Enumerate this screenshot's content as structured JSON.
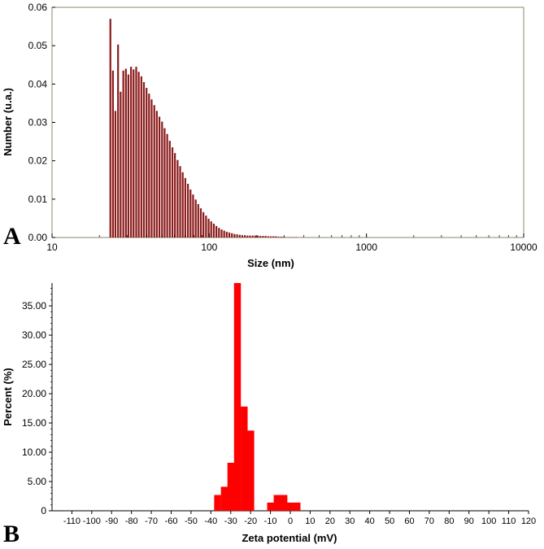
{
  "panels": [
    {
      "letter": "A"
    },
    {
      "letter": "B"
    }
  ],
  "chart_data": [
    {
      "type": "bar",
      "panel": "A",
      "xlabel": "Size (nm)",
      "ylabel": "Number (u.a.)",
      "xscale": "log",
      "xlim": [
        10,
        10000
      ],
      "ylim": [
        0,
        0.06
      ],
      "xticks": [
        10,
        100,
        1000,
        10000
      ],
      "xtick_labels": [
        "10",
        "100",
        "1000",
        "10000"
      ],
      "yticks": [
        0,
        0.01,
        0.02,
        0.03,
        0.04,
        0.05,
        0.06
      ],
      "ytick_labels": [
        "0.00",
        "0.01",
        "0.02",
        "0.03",
        "0.04",
        "0.05",
        "0.06"
      ],
      "bar_color": "#8b1a1a",
      "x": [
        23.5,
        24.4,
        25.3,
        26.3,
        27.3,
        28.4,
        29.5,
        30.6,
        31.8,
        33.0,
        34.3,
        35.6,
        37.0,
        38.4,
        39.9,
        41.4,
        43.0,
        44.7,
        46.4,
        48.2,
        50.1,
        52.0,
        54.0,
        56.1,
        58.3,
        60.5,
        62.9,
        65.3,
        67.8,
        70.4,
        73.2,
        76.0,
        78.9,
        82.0,
        85.1,
        88.4,
        91.8,
        95.4,
        99.1,
        102.9,
        106.9,
        111.0,
        115.3,
        119.8,
        124.4,
        129.2,
        134.2,
        139.4,
        144.8,
        150.4,
        156.2,
        162.2,
        168.5,
        175.0,
        181.7,
        188.8,
        196.1,
        203.6,
        211.5,
        219.7,
        228.2,
        237.0,
        246.1,
        255.6,
        265.5,
        275.8,
        286.4,
        297.5,
        309.0,
        321.0,
        333.4,
        346.2,
        359.6
      ],
      "values": [
        0.057,
        0.0435,
        0.033,
        0.0503,
        0.038,
        0.0435,
        0.044,
        0.0425,
        0.0445,
        0.0438,
        0.0445,
        0.0432,
        0.042,
        0.0405,
        0.039,
        0.0375,
        0.036,
        0.0345,
        0.033,
        0.0315,
        0.0302,
        0.0285,
        0.027,
        0.0252,
        0.0235,
        0.022,
        0.0202,
        0.0186,
        0.017,
        0.0155,
        0.014,
        0.0125,
        0.0112,
        0.0099,
        0.0087,
        0.0076,
        0.0066,
        0.0057,
        0.0049,
        0.0042,
        0.0036,
        0.003,
        0.0025,
        0.0021,
        0.0018,
        0.0015,
        0.0013,
        0.0011,
        0.0009,
        0.0008,
        0.0007,
        0.0006,
        0.0006,
        0.0005,
        0.0005,
        0.0005,
        0.0005,
        0.0005,
        0.0004,
        0.0004,
        0.0004,
        0.0003,
        0.0003,
        0.0003,
        0.0003,
        0.0002,
        0.0002,
        0.0002,
        0.0001,
        0.0001,
        0.0001,
        0.0001,
        0.0001
      ]
    },
    {
      "type": "bar",
      "panel": "B",
      "xlabel": "Zeta potential (mV)",
      "ylabel": "Percent (%)",
      "xlim": [
        -120,
        120
      ],
      "ylim": [
        0,
        38.9
      ],
      "xticks": [
        -110,
        -100,
        -90,
        -80,
        -70,
        -60,
        -50,
        -40,
        -30,
        -20,
        -10,
        0,
        10,
        20,
        30,
        40,
        50,
        60,
        70,
        80,
        90,
        100,
        110,
        120
      ],
      "xtick_labels": [
        "-110",
        "-100",
        "-90",
        "-80",
        "-70",
        "-60",
        "-50",
        "-40",
        "-30",
        "-20",
        "-10",
        "0",
        "10",
        "20",
        "30",
        "40",
        "50",
        "60",
        "70",
        "80",
        "90",
        "100",
        "110",
        "120"
      ],
      "yticks": [
        0,
        5,
        10,
        15,
        20,
        25,
        30,
        35
      ],
      "ytick_labels": [
        "0",
        "5.00",
        "10.00",
        "15.00",
        "20.00",
        "25.00",
        "30.00",
        "35.00"
      ],
      "bar_color": "#ff0000",
      "bar_width": 3.3,
      "x": [
        -36.7,
        -33.3,
        -30.0,
        -26.7,
        -23.3,
        -20.0,
        -10.0,
        -6.7,
        -3.3,
        0.0,
        3.3
      ],
      "values": [
        2.7,
        4.1,
        8.2,
        38.9,
        17.8,
        13.7,
        1.4,
        2.7,
        2.7,
        1.4,
        1.4
      ]
    }
  ]
}
